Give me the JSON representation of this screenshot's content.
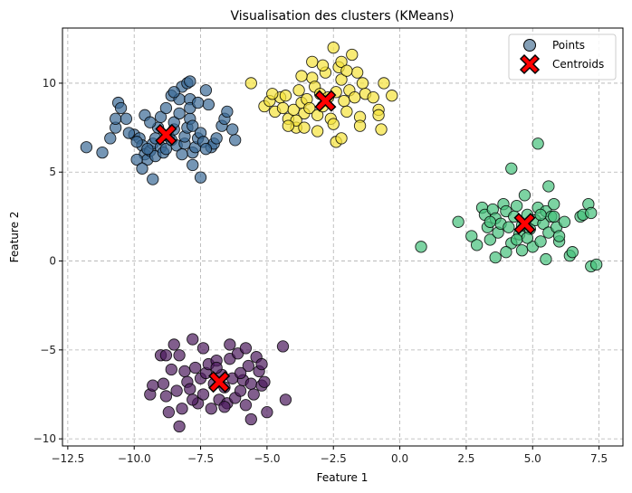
{
  "chart_data": {
    "type": "scatter",
    "title": "Visualisation des clusters (KMeans)",
    "xlabel": "Feature 1",
    "ylabel": "Feature 2",
    "xlim": [
      -12.7,
      8.4
    ],
    "ylim": [
      -10.4,
      13.1
    ],
    "x_ticks": [
      -12.5,
      -10.0,
      -7.5,
      -5.0,
      -2.5,
      0.0,
      2.5,
      5.0,
      7.5
    ],
    "x_tick_labels": [
      "−12.5",
      "−10.0",
      "−7.5",
      "−5.0",
      "−2.5",
      "0.0",
      "2.5",
      "5.0",
      "7.5"
    ],
    "y_ticks": [
      -10,
      -5,
      0,
      5,
      10
    ],
    "y_tick_labels": [
      "−10",
      "−5",
      "0",
      "5",
      "10"
    ],
    "grid": true,
    "grid_style": "dashed",
    "legend_position": "top-right",
    "legend": [
      {
        "label": "Points",
        "marker": "circle",
        "color": "#5b7f9e"
      },
      {
        "label": "Centroids",
        "marker": "x",
        "color": "#ff0000"
      }
    ],
    "colors": {
      "cluster_top_left": "#3b6a95",
      "cluster_top_middle": "#f5e23a",
      "cluster_right": "#45c17a",
      "cluster_bottom": "#4b1a5c",
      "centroid": "#ff0000"
    },
    "series": [
      {
        "cluster": "top_left",
        "color": "#3b6a95",
        "points": [
          [
            -11.8,
            6.4
          ],
          [
            -11.2,
            6.1
          ],
          [
            -10.9,
            6.9
          ],
          [
            -10.7,
            7.5
          ],
          [
            -10.7,
            8.0
          ],
          [
            -10.6,
            8.9
          ],
          [
            -10.5,
            8.6
          ],
          [
            -10.3,
            8.0
          ],
          [
            -10.0,
            7.1
          ],
          [
            -9.8,
            6.9
          ],
          [
            -9.7,
            6.5
          ],
          [
            -9.6,
            6.0
          ],
          [
            -9.5,
            5.7
          ],
          [
            -9.4,
            6.2
          ],
          [
            -9.3,
            6.6
          ],
          [
            -9.2,
            6.9
          ],
          [
            -9.2,
            5.9
          ],
          [
            -9.1,
            7.5
          ],
          [
            -9.0,
            6.4
          ],
          [
            -8.9,
            6.1
          ],
          [
            -8.8,
            6.3
          ],
          [
            -8.7,
            7.0
          ],
          [
            -8.6,
            6.8
          ],
          [
            -8.6,
            9.3
          ],
          [
            -8.5,
            7.4
          ],
          [
            -8.5,
            7.8
          ],
          [
            -8.4,
            6.5
          ],
          [
            -8.3,
            8.3
          ],
          [
            -8.3,
            9.1
          ],
          [
            -8.2,
            9.8
          ],
          [
            -8.1,
            6.6
          ],
          [
            -8.1,
            7.0
          ],
          [
            -8.0,
            7.5
          ],
          [
            -7.9,
            9.1
          ],
          [
            -7.9,
            8.0
          ],
          [
            -7.8,
            7.6
          ],
          [
            -7.8,
            6.1
          ],
          [
            -7.7,
            6.4
          ],
          [
            -7.6,
            6.9
          ],
          [
            -7.5,
            7.2
          ],
          [
            -7.4,
            6.7
          ],
          [
            -7.3,
            9.6
          ],
          [
            -7.2,
            8.8
          ],
          [
            -7.1,
            6.4
          ],
          [
            -7.0,
            6.6
          ],
          [
            -6.9,
            6.9
          ],
          [
            -6.7,
            7.6
          ],
          [
            -6.6,
            8.0
          ],
          [
            -6.5,
            8.4
          ],
          [
            -6.3,
            7.4
          ],
          [
            -6.2,
            6.8
          ],
          [
            -9.9,
            5.7
          ],
          [
            -9.7,
            5.2
          ],
          [
            -9.3,
            4.6
          ],
          [
            -7.8,
            5.4
          ],
          [
            -7.5,
            4.7
          ],
          [
            -9.6,
            8.2
          ],
          [
            -9.4,
            7.8
          ],
          [
            -9.0,
            8.1
          ],
          [
            -8.8,
            8.6
          ],
          [
            -8.5,
            9.5
          ],
          [
            -7.9,
            8.6
          ],
          [
            -7.6,
            8.9
          ],
          [
            -8.0,
            10.0
          ],
          [
            -7.9,
            10.1
          ],
          [
            -9.5,
            6.3
          ],
          [
            -9.9,
            6.7
          ],
          [
            -10.2,
            7.2
          ],
          [
            -8.2,
            6.0
          ],
          [
            -7.3,
            6.3
          ]
        ]
      },
      {
        "cluster": "top_middle",
        "color": "#f5e23a",
        "points": [
          [
            -5.6,
            10.0
          ],
          [
            -5.1,
            8.7
          ],
          [
            -4.9,
            9.0
          ],
          [
            -4.7,
            8.4
          ],
          [
            -4.5,
            9.2
          ],
          [
            -4.4,
            8.6
          ],
          [
            -4.3,
            9.3
          ],
          [
            -4.2,
            8.0
          ],
          [
            -4.0,
            8.5
          ],
          [
            -3.9,
            7.5
          ],
          [
            -3.8,
            9.6
          ],
          [
            -3.7,
            8.9
          ],
          [
            -3.6,
            8.3
          ],
          [
            -3.5,
            9.1
          ],
          [
            -3.4,
            8.6
          ],
          [
            -3.3,
            10.3
          ],
          [
            -3.2,
            9.8
          ],
          [
            -3.1,
            8.2
          ],
          [
            -3.0,
            9.4
          ],
          [
            -2.9,
            8.7
          ],
          [
            -2.8,
            10.6
          ],
          [
            -2.7,
            9.2
          ],
          [
            -2.6,
            8.0
          ],
          [
            -2.5,
            7.7
          ],
          [
            -2.4,
            9.5
          ],
          [
            -2.3,
            10.9
          ],
          [
            -2.2,
            10.2
          ],
          [
            -2.1,
            9.0
          ],
          [
            -2.0,
            8.4
          ],
          [
            -1.9,
            9.6
          ],
          [
            -1.8,
            11.6
          ],
          [
            -1.7,
            9.2
          ],
          [
            -1.6,
            10.6
          ],
          [
            -1.5,
            8.1
          ],
          [
            -1.4,
            10.0
          ],
          [
            -1.3,
            9.4
          ],
          [
            -1.0,
            9.2
          ],
          [
            -0.8,
            8.5
          ],
          [
            -0.7,
            7.4
          ],
          [
            -0.6,
            10.0
          ],
          [
            -0.3,
            9.3
          ],
          [
            -2.5,
            12.0
          ],
          [
            -3.3,
            11.2
          ],
          [
            -2.9,
            11.0
          ],
          [
            -2.2,
            11.2
          ],
          [
            -2.4,
            6.7
          ],
          [
            -2.2,
            6.9
          ],
          [
            -3.1,
            7.3
          ],
          [
            -3.9,
            7.9
          ],
          [
            -4.2,
            7.6
          ],
          [
            -3.6,
            7.5
          ],
          [
            -2.0,
            10.7
          ],
          [
            -1.5,
            7.6
          ],
          [
            -0.8,
            8.2
          ],
          [
            -3.7,
            10.4
          ],
          [
            -4.8,
            9.4
          ]
        ]
      },
      {
        "cluster": "right",
        "color": "#45c17a",
        "points": [
          [
            0.8,
            0.8
          ],
          [
            2.2,
            2.2
          ],
          [
            2.7,
            1.4
          ],
          [
            2.9,
            0.9
          ],
          [
            3.1,
            3.0
          ],
          [
            3.2,
            2.6
          ],
          [
            3.3,
            1.9
          ],
          [
            3.4,
            1.2
          ],
          [
            3.5,
            2.9
          ],
          [
            3.6,
            2.4
          ],
          [
            3.7,
            1.6
          ],
          [
            3.8,
            2.1
          ],
          [
            3.9,
            3.2
          ],
          [
            4.0,
            2.8
          ],
          [
            4.1,
            1.9
          ],
          [
            4.2,
            1.0
          ],
          [
            4.3,
            2.5
          ],
          [
            4.4,
            3.1
          ],
          [
            4.5,
            1.5
          ],
          [
            4.6,
            2.0
          ],
          [
            4.7,
            3.7
          ],
          [
            4.8,
            2.6
          ],
          [
            4.9,
            1.8
          ],
          [
            5.0,
            0.8
          ],
          [
            5.1,
            2.3
          ],
          [
            5.2,
            3.0
          ],
          [
            5.3,
            1.1
          ],
          [
            5.4,
            2.1
          ],
          [
            5.5,
            2.8
          ],
          [
            5.6,
            1.6
          ],
          [
            5.7,
            2.5
          ],
          [
            5.8,
            3.2
          ],
          [
            5.9,
            1.9
          ],
          [
            6.0,
            1.1
          ],
          [
            6.2,
            2.2
          ],
          [
            6.4,
            0.3
          ],
          [
            6.5,
            0.5
          ],
          [
            6.8,
            2.5
          ],
          [
            6.9,
            2.6
          ],
          [
            7.1,
            3.2
          ],
          [
            7.2,
            2.7
          ],
          [
            7.2,
            -0.3
          ],
          [
            7.4,
            -0.2
          ],
          [
            4.2,
            5.2
          ],
          [
            5.2,
            6.6
          ],
          [
            5.6,
            4.2
          ],
          [
            4.6,
            0.6
          ],
          [
            3.6,
            0.2
          ],
          [
            5.5,
            0.1
          ],
          [
            6.0,
            1.4
          ],
          [
            3.4,
            2.2
          ],
          [
            4.0,
            0.5
          ],
          [
            4.8,
            1.3
          ],
          [
            5.3,
            2.6
          ],
          [
            5.8,
            2.5
          ],
          [
            4.4,
            1.2
          ]
        ]
      },
      {
        "cluster": "bottom",
        "color": "#4b1a5c",
        "points": [
          [
            -9.4,
            -7.5
          ],
          [
            -9.3,
            -7.0
          ],
          [
            -9.0,
            -5.3
          ],
          [
            -8.9,
            -6.9
          ],
          [
            -8.8,
            -5.3
          ],
          [
            -8.7,
            -8.5
          ],
          [
            -8.6,
            -6.1
          ],
          [
            -8.5,
            -4.7
          ],
          [
            -8.4,
            -7.3
          ],
          [
            -8.3,
            -9.3
          ],
          [
            -8.2,
            -8.3
          ],
          [
            -8.1,
            -6.2
          ],
          [
            -8.0,
            -6.8
          ],
          [
            -7.9,
            -7.2
          ],
          [
            -7.8,
            -4.4
          ],
          [
            -7.7,
            -6.0
          ],
          [
            -7.6,
            -8.0
          ],
          [
            -7.5,
            -6.6
          ],
          [
            -7.4,
            -7.5
          ],
          [
            -7.3,
            -6.3
          ],
          [
            -7.2,
            -5.8
          ],
          [
            -7.1,
            -8.3
          ],
          [
            -7.0,
            -6.9
          ],
          [
            -6.9,
            -5.6
          ],
          [
            -6.8,
            -7.8
          ],
          [
            -6.7,
            -6.4
          ],
          [
            -6.6,
            -7.1
          ],
          [
            -6.5,
            -8.0
          ],
          [
            -6.4,
            -5.5
          ],
          [
            -6.3,
            -6.6
          ],
          [
            -6.2,
            -7.7
          ],
          [
            -6.1,
            -5.2
          ],
          [
            -6.0,
            -7.3
          ],
          [
            -5.9,
            -6.7
          ],
          [
            -5.8,
            -8.1
          ],
          [
            -5.7,
            -5.9
          ],
          [
            -5.6,
            -6.9
          ],
          [
            -5.5,
            -7.5
          ],
          [
            -5.4,
            -5.4
          ],
          [
            -5.3,
            -6.2
          ],
          [
            -5.2,
            -7.0
          ],
          [
            -5.1,
            -6.8
          ],
          [
            -5.0,
            -8.5
          ],
          [
            -4.4,
            -4.8
          ],
          [
            -4.3,
            -7.8
          ],
          [
            -6.4,
            -4.7
          ],
          [
            -5.8,
            -4.9
          ],
          [
            -5.6,
            -8.9
          ],
          [
            -8.8,
            -7.6
          ],
          [
            -8.3,
            -5.3
          ],
          [
            -7.4,
            -4.9
          ],
          [
            -6.9,
            -6.0
          ],
          [
            -6.0,
            -6.3
          ],
          [
            -7.8,
            -7.8
          ],
          [
            -5.2,
            -5.8
          ],
          [
            -6.6,
            -8.2
          ]
        ]
      }
    ],
    "centroids": [
      [
        -8.8,
        7.1
      ],
      [
        -2.8,
        9.0
      ],
      [
        4.7,
        2.1
      ],
      [
        -6.8,
        -6.8
      ]
    ]
  }
}
